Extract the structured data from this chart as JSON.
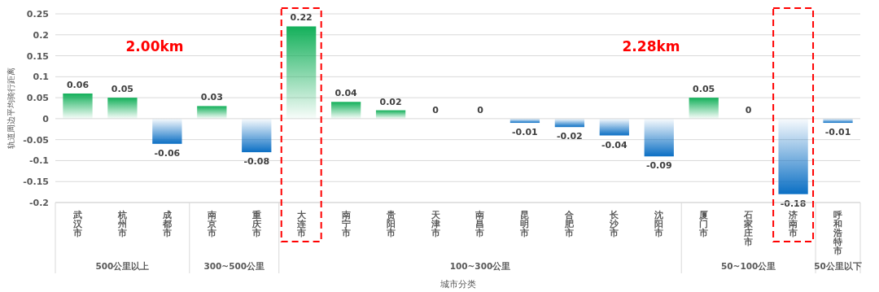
{
  "chart_data": {
    "type": "bar",
    "ylabel": "轨道周边平均骑行距离",
    "xlabel": "城市分类",
    "categories": [
      "武汉市",
      "杭州市",
      "成都市",
      "南京市",
      "重庆市",
      "大连市",
      "南宁市",
      "贵阳市",
      "天津市",
      "南昌市",
      "昆明市",
      "合肥市",
      "长沙市",
      "沈阳市",
      "厦门市",
      "石家庄市",
      "济南市",
      "呼和浩特市"
    ],
    "values": [
      0.06,
      0.05,
      -0.06,
      0.03,
      -0.08,
      0.22,
      0.04,
      0.02,
      0,
      0,
      -0.01,
      -0.02,
      -0.04,
      -0.09,
      0.05,
      0,
      -0.18,
      -0.01
    ],
    "colors": [
      "#13b05a",
      "#13b05a",
      "#0b6fc4",
      "#13b05a",
      "#0b6fc4",
      "#13b05a",
      "#13b05a",
      "#13b05a",
      "#13b05a",
      "#13b05a",
      "#0b6fc4",
      "#0b6fc4",
      "#0b6fc4",
      "#0b6fc4",
      "#13b05a",
      "#13b05a",
      "#0b6fc4",
      "#0b6fc4"
    ],
    "ylim": [
      -0.2,
      0.25
    ],
    "yticks": [
      -0.2,
      -0.15,
      -0.1,
      -0.05,
      0,
      0.05,
      0.1,
      0.15,
      0.2,
      0.25
    ],
    "grid": "y",
    "data_labels": true,
    "annotations": [
      "2.00km",
      "2.28km",
      "500公里以上",
      "300~500公里",
      "100~300公里",
      "50~100公里",
      "50公里以下"
    ]
  }
}
